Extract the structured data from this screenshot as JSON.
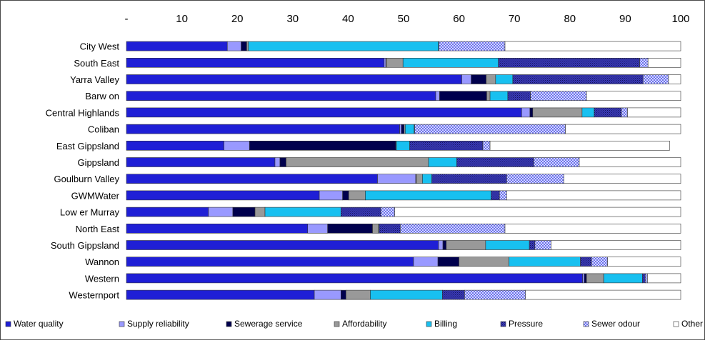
{
  "chart_data": {
    "type": "bar",
    "orientation": "horizontal",
    "stacked": true,
    "xlim": [
      0,
      100
    ],
    "x_ticks": [
      "-",
      "10",
      "20",
      "30",
      "40",
      "50",
      "60",
      "70",
      "80",
      "90",
      "100"
    ],
    "grid": false,
    "legend_position": "bottom",
    "categories": [
      "City West",
      "South East",
      "Yarra Valley",
      "Barw on",
      "Central Highlands",
      "Coliban",
      "East Gippsland",
      "Gippsland",
      "Goulburn Valley",
      "GWMWater",
      "Low er Murray",
      "North East",
      "South Gippsland",
      "Wannon",
      "Western",
      "Westernport"
    ],
    "series": [
      {
        "name": "Water quality",
        "color": "#1f1fd6",
        "pattern": "solid",
        "values": [
          18.2,
          46.5,
          60.5,
          55.8,
          71.3,
          49.3,
          17.6,
          26.8,
          45.3,
          34.8,
          14.8,
          32.7,
          56.3,
          51.8,
          82.3,
          33.9
        ]
      },
      {
        "name": "Supply reliability",
        "color": "#9999ff",
        "pattern": "solid",
        "values": [
          2.5,
          0.3,
          1.7,
          0.7,
          1.5,
          0.3,
          4.6,
          0.9,
          6.9,
          4.2,
          4.4,
          3.6,
          0.8,
          4.4,
          0.3,
          4.8
        ]
      },
      {
        "name": "Sewerage service",
        "color": "#00004d",
        "pattern": "solid",
        "values": [
          1.0,
          0.1,
          2.7,
          8.5,
          0.5,
          0.5,
          26.4,
          1.1,
          0.1,
          1.1,
          4.0,
          8.1,
          0.6,
          3.8,
          0.4,
          0.9
        ]
      },
      {
        "name": "Affordability",
        "color": "#999999",
        "pattern": "solid",
        "values": [
          0.3,
          3.0,
          1.7,
          0.6,
          8.9,
          0.2,
          0.1,
          25.7,
          1.1,
          3.0,
          1.8,
          1.1,
          7.1,
          9.0,
          3.1,
          4.4
        ]
      },
      {
        "name": "Billing",
        "color": "#18c0f0",
        "pattern": "solid",
        "values": [
          34.3,
          17.2,
          3.1,
          3.2,
          2.2,
          1.6,
          2.4,
          5.1,
          1.7,
          22.7,
          13.7,
          0.1,
          7.9,
          12.9,
          7.0,
          13.0
        ]
      },
      {
        "name": "Pressure",
        "color": "#3333aa",
        "pattern": "dots",
        "values": [
          0.1,
          25.5,
          23.5,
          4.1,
          4.9,
          0.1,
          13.2,
          13.9,
          13.5,
          1.5,
          7.2,
          3.8,
          1.0,
          2.0,
          0.5,
          4.0
        ]
      },
      {
        "name": "Sewer odour",
        "color": "#7f86f0",
        "pattern": "checker",
        "values": [
          11.9,
          1.5,
          4.6,
          10.1,
          1.1,
          27.2,
          1.3,
          8.2,
          10.3,
          1.3,
          2.5,
          18.9,
          2.9,
          2.9,
          0.4,
          11.0
        ]
      },
      {
        "name": "Other",
        "color": "#ffffff",
        "pattern": "solid",
        "values": [
          31.7,
          5.9,
          2.2,
          17.0,
          9.6,
          20.8,
          32.4,
          18.3,
          21.1,
          31.4,
          51.6,
          31.7,
          23.4,
          13.2,
          6.0,
          28.0
        ]
      }
    ]
  }
}
